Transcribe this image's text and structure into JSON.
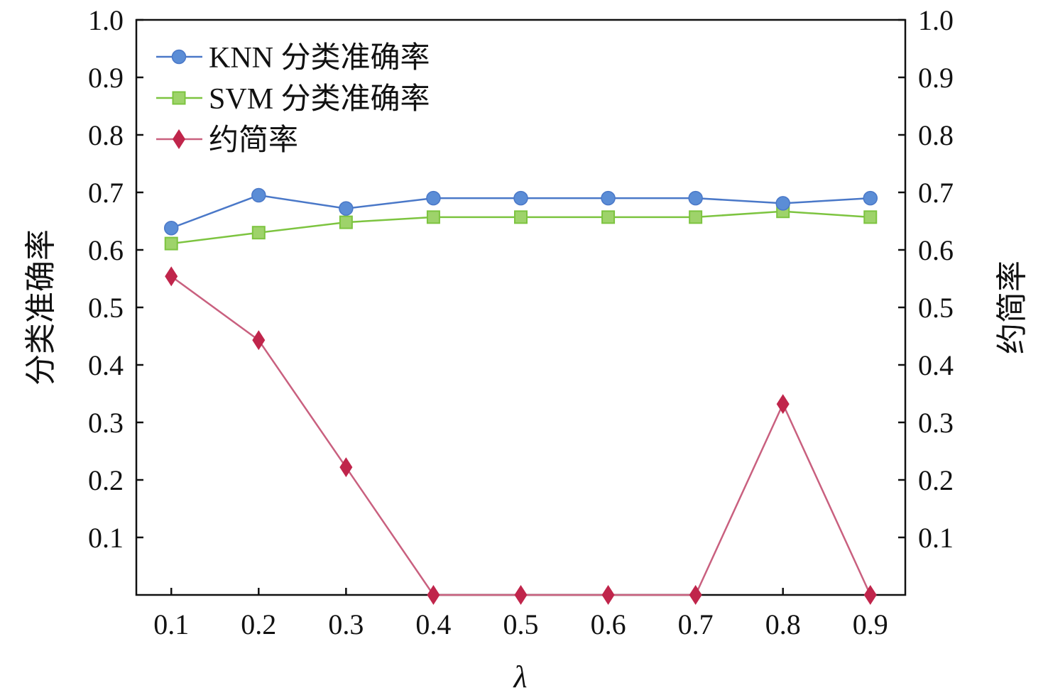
{
  "chart_data": {
    "type": "line",
    "title": "",
    "xlabel": "λ",
    "ylabel": "分类准确率",
    "ylabel_right": "约简率",
    "x": [
      0.1,
      0.2,
      0.3,
      0.4,
      0.5,
      0.6,
      0.7,
      0.8,
      0.9
    ],
    "x_tick_labels": [
      "0.1",
      "0.2",
      "0.3",
      "0.4",
      "0.5",
      "0.6",
      "0.7",
      "0.8",
      "0.9"
    ],
    "xlim": [
      0.06,
      0.94
    ],
    "ylim": [
      0,
      1.0
    ],
    "y_tick_labels": [
      "0.1",
      "0.2",
      "0.3",
      "0.4",
      "0.5",
      "0.6",
      "0.7",
      "0.8",
      "0.9",
      "1.0"
    ],
    "y_ticks": [
      0.1,
      0.2,
      0.3,
      0.4,
      0.5,
      0.6,
      0.7,
      0.8,
      0.9,
      1.0
    ],
    "legend_position": "top-left",
    "grid": false,
    "series": [
      {
        "name": "KNN 分类准确率",
        "marker": "circle",
        "line_color": "#4a78c8",
        "marker_color": "#5b8dd6",
        "values": [
          0.638,
          0.695,
          0.672,
          0.69,
          0.69,
          0.69,
          0.69,
          0.681,
          0.69
        ]
      },
      {
        "name": "SVM 分类准确率",
        "marker": "square",
        "line_color": "#7dc440",
        "marker_color": "#9ed36a",
        "values": [
          0.611,
          0.63,
          0.648,
          0.657,
          0.657,
          0.657,
          0.657,
          0.667,
          0.657
        ]
      },
      {
        "name": "约简率",
        "marker": "diamond",
        "line_color": "#c9607f",
        "marker_color": "#c0254b",
        "values": [
          0.554,
          0.443,
          0.222,
          0.0,
          0.0,
          0.0,
          0.0,
          0.332,
          0.0
        ]
      }
    ]
  }
}
